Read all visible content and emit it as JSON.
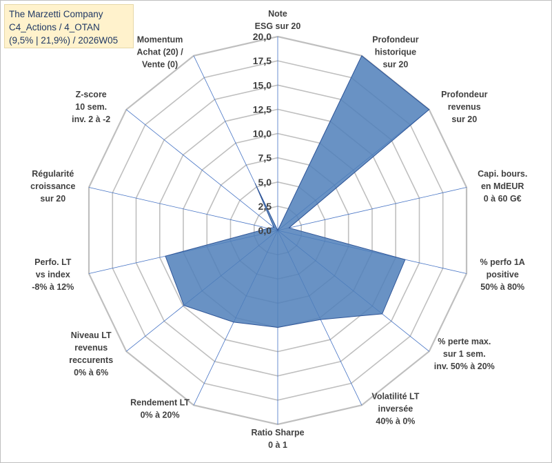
{
  "title_box": {
    "line1": "The Marzetti Company",
    "line2": "C4_Actions / 4_OTAN",
    "line3": "(9,5% | 21,9%) / 2026W05"
  },
  "chart_data": {
    "type": "radar",
    "r_range": [
      0,
      20
    ],
    "r_ticks": [
      "0,0",
      "2,5",
      "5,0",
      "7,5",
      "10,0",
      "12,5",
      "15,0",
      "17,5",
      "20,0"
    ],
    "ring_count": 8,
    "grid": true,
    "axes": [
      {
        "label": [
          "Note",
          "ESG sur 20"
        ],
        "value": 0
      },
      {
        "label": [
          "Profondeur",
          "historique",
          "sur 20"
        ],
        "value": 20
      },
      {
        "label": [
          "Profondeur",
          "revenus",
          "sur 20"
        ],
        "value": 20
      },
      {
        "label": [
          "Capi. bours.",
          "en MdEUR",
          "0 à 60 G€"
        ],
        "value": 1.2
      },
      {
        "label": [
          "% perfo 1A",
          "positive",
          "50% à 80%"
        ],
        "value": 13.5
      },
      {
        "label": [
          "% perte max.",
          "sur 1 sem.",
          "inv. 50% à 20%"
        ],
        "value": 13.8
      },
      {
        "label": [
          "Volatilité LT",
          "inversée",
          "40% à 0%"
        ],
        "value": 10.2
      },
      {
        "label": [
          "Ratio Sharpe",
          "0 à 1"
        ],
        "value": 10.0
      },
      {
        "label": [
          "Rendement LT",
          "0% à 20%"
        ],
        "value": 10.5
      },
      {
        "label": [
          "Niveau LT",
          "revenus",
          "reccurents",
          "0% à 6%"
        ],
        "value": 12.4
      },
      {
        "label": [
          "Perfo. LT",
          "vs index",
          "-8% à 12%"
        ],
        "value": 11.9
      },
      {
        "label": [
          "Régularité",
          "croissance",
          "sur 20"
        ],
        "value": 1.0
      },
      {
        "label": [
          "Z-score",
          "10 sem.",
          "inv. 2 à -2"
        ],
        "value": 0.5
      },
      {
        "label": [
          "Momentum",
          "Achat (20) /",
          "Vente (0)"
        ],
        "value": 5.4
      }
    ],
    "colors": {
      "fill": "#4f7fba",
      "stroke": "#2f5597",
      "grid": "#bfbfbf",
      "spoke": "#4472c4"
    }
  }
}
